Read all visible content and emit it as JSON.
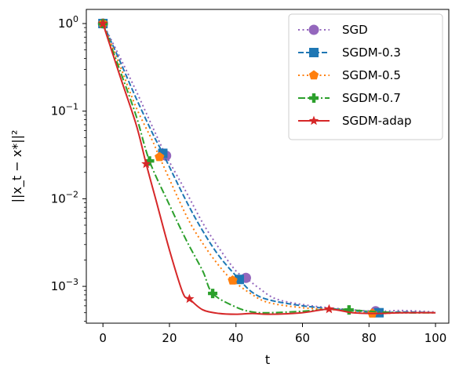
{
  "chart_data": {
    "type": "line",
    "xlabel": "t",
    "ylabel": "||x_t − x*||²",
    "yscale": "log",
    "xlim": [
      -5,
      104
    ],
    "ylim": [
      0.00038,
      1.45
    ],
    "x_ticks": [
      0,
      20,
      40,
      60,
      80,
      100
    ],
    "y_ticks": [
      {
        "value": 1,
        "base": "10",
        "exp": "0"
      },
      {
        "value": 0.1,
        "base": "10",
        "exp": "−1"
      },
      {
        "value": 0.01,
        "base": "10",
        "exp": "−2"
      },
      {
        "value": 0.001,
        "base": "10",
        "exp": "−3"
      }
    ],
    "legend_position": "top-right",
    "series": [
      {
        "name": "SGD",
        "color": "#9467bd",
        "linestyle": "dotted",
        "marker": "circle",
        "x": [
          0,
          5,
          10,
          15,
          19,
          25,
          30,
          35,
          40,
          43,
          47,
          52,
          60,
          70,
          82,
          90,
          100
        ],
        "y": [
          1.0,
          0.42,
          0.17,
          0.065,
          0.031,
          0.012,
          0.0053,
          0.0027,
          0.0015,
          0.00125,
          0.00095,
          0.00072,
          0.00062,
          0.00056,
          0.00052,
          0.00053,
          0.00051
        ],
        "markers_at": [
          0,
          19,
          43,
          82
        ]
      },
      {
        "name": "SGDM-0.3",
        "color": "#1f77b4",
        "linestyle": "dashed",
        "marker": "square",
        "x": [
          0,
          5,
          10,
          15,
          18,
          25,
          30,
          35,
          41,
          45,
          50,
          60,
          70,
          83,
          90,
          100
        ],
        "y": [
          1.0,
          0.38,
          0.14,
          0.055,
          0.033,
          0.0095,
          0.0043,
          0.0022,
          0.0012,
          0.00085,
          0.0007,
          0.0006,
          0.00055,
          0.0005,
          0.00051,
          0.0005
        ],
        "markers_at": [
          0,
          18,
          41,
          83
        ]
      },
      {
        "name": "SGDM-0.5",
        "color": "#ff7f0e",
        "linestyle": "dotted",
        "marker": "pentagon",
        "x": [
          0,
          5,
          10,
          15,
          17,
          25,
          30,
          35,
          39,
          45,
          50,
          60,
          70,
          81,
          90,
          100
        ],
        "y": [
          1.0,
          0.34,
          0.11,
          0.045,
          0.03,
          0.0065,
          0.0031,
          0.0017,
          0.00117,
          0.0008,
          0.00065,
          0.00057,
          0.00054,
          0.00049,
          0.0005,
          0.0005
        ],
        "markers_at": [
          0,
          17,
          39,
          81
        ]
      },
      {
        "name": "SGDM-0.7",
        "color": "#2ca02c",
        "linestyle": "dashdot",
        "marker": "plus",
        "x": [
          0,
          5,
          10,
          14,
          20,
          25,
          30,
          33,
          40,
          45,
          50,
          60,
          70,
          80,
          90,
          100
        ],
        "y": [
          1.0,
          0.3,
          0.088,
          0.027,
          0.0085,
          0.0034,
          0.0015,
          0.00083,
          0.00058,
          0.00051,
          0.0005,
          0.00052,
          0.00055,
          0.00052,
          0.0005,
          0.0005
        ],
        "markers_at": [
          0,
          14,
          33,
          74
        ]
      },
      {
        "name": "SGDM-adap",
        "color": "#d62728",
        "linestyle": "solid",
        "marker": "star",
        "x": [
          0,
          5,
          10,
          13,
          16,
          20,
          24,
          26,
          30,
          35,
          40,
          45,
          50,
          60,
          68,
          75,
          82,
          90,
          100
        ],
        "y": [
          1.0,
          0.26,
          0.07,
          0.025,
          0.0095,
          0.0026,
          0.00085,
          0.00072,
          0.00054,
          0.00049,
          0.00048,
          0.00049,
          0.00048,
          0.0005,
          0.00055,
          0.0005,
          0.00049,
          0.0005,
          0.0005
        ],
        "markers_at": [
          0,
          13,
          26,
          68
        ]
      }
    ]
  }
}
